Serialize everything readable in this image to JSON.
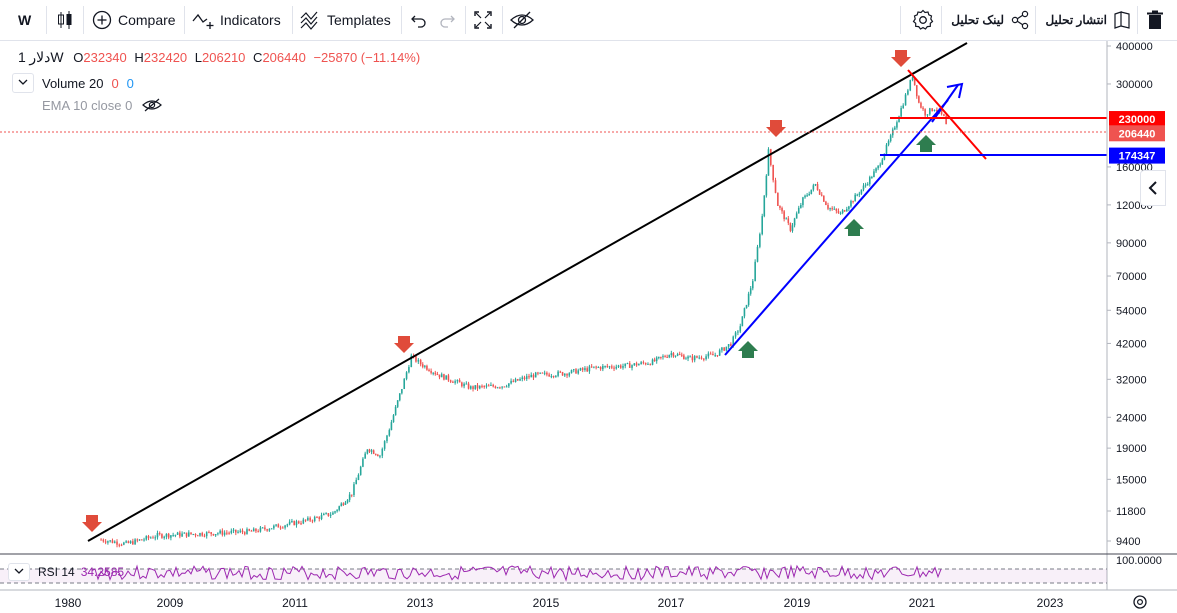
{
  "toolbar": {
    "symbol": "W",
    "compare_label": "Compare",
    "indicators_label": "Indicators",
    "templates_label": "Templates",
    "publish_label": "انتشار تحلیل",
    "share_link_label": "لینک تحلیل"
  },
  "legend": {
    "symbol": "دلار",
    "interval": "1W",
    "open_label": "O",
    "open": "232340",
    "high_label": "H",
    "high": "232420",
    "low_label": "L",
    "low": "206210",
    "close_label": "C",
    "close": "206440",
    "change": "−25870 (−11.14%)",
    "volume_label": "Volume 20",
    "volume_v1": "0",
    "volume_v2": "0",
    "ema_label": "EMA 10 close 0",
    "rsi_label": "RSI 14",
    "rsi_value": "34.2585"
  },
  "colors": {
    "up": "#26a69a",
    "down": "#ef5350",
    "trendline": "#000000",
    "support_line": "#0000ff",
    "resistance_line": "#ff0000",
    "rsi": "#9c27b0",
    "up_arrow": "#2e7d4f",
    "down_arrow": "#e04b3a"
  },
  "chart_data": {
    "type": "candlestick",
    "scale": "log",
    "y_ticks": [
      9400,
      11800,
      15000,
      19000,
      24000,
      32000,
      42000,
      54000,
      70000,
      90000,
      120000,
      160000,
      300000,
      400000
    ],
    "x_ticks": [
      "1980",
      "2009",
      "2011",
      "2013",
      "2015",
      "2017",
      "2019",
      "2021",
      "2023"
    ],
    "price_labels": [
      {
        "value": 230000,
        "text": "230000",
        "color": "#ff0000"
      },
      {
        "value": 206440,
        "text": "206440",
        "color": "#ef5350"
      },
      {
        "value": 174347,
        "text": "174347",
        "color": "#0000ff"
      }
    ],
    "series": [
      {
        "x": 2007.9,
        "y": 9500
      },
      {
        "x": 2008.3,
        "y": 9200
      },
      {
        "x": 2008.8,
        "y": 9800
      },
      {
        "x": 2009.3,
        "y": 9900
      },
      {
        "x": 2009.8,
        "y": 10000
      },
      {
        "x": 2010.3,
        "y": 10100
      },
      {
        "x": 2010.8,
        "y": 10600
      },
      {
        "x": 2011.2,
        "y": 11000
      },
      {
        "x": 2011.6,
        "y": 11600
      },
      {
        "x": 2011.9,
        "y": 13500
      },
      {
        "x": 2012.15,
        "y": 19000
      },
      {
        "x": 2012.35,
        "y": 18000
      },
      {
        "x": 2012.5,
        "y": 22000
      },
      {
        "x": 2012.7,
        "y": 30000
      },
      {
        "x": 2012.85,
        "y": 38000
      },
      {
        "x": 2013.0,
        "y": 36000
      },
      {
        "x": 2013.3,
        "y": 33000
      },
      {
        "x": 2013.8,
        "y": 30000
      },
      {
        "x": 2014.3,
        "y": 30500
      },
      {
        "x": 2014.8,
        "y": 33000
      },
      {
        "x": 2015.3,
        "y": 33500
      },
      {
        "x": 2015.8,
        "y": 35000
      },
      {
        "x": 2016.3,
        "y": 35500
      },
      {
        "x": 2016.7,
        "y": 36500
      },
      {
        "x": 2017.0,
        "y": 39000
      },
      {
        "x": 2017.3,
        "y": 37500
      },
      {
        "x": 2017.7,
        "y": 38500
      },
      {
        "x": 2017.95,
        "y": 42000
      },
      {
        "x": 2018.1,
        "y": 48000
      },
      {
        "x": 2018.3,
        "y": 68000
      },
      {
        "x": 2018.45,
        "y": 110000
      },
      {
        "x": 2018.55,
        "y": 180000
      },
      {
        "x": 2018.7,
        "y": 120000
      },
      {
        "x": 2018.9,
        "y": 100000
      },
      {
        "x": 2019.1,
        "y": 125000
      },
      {
        "x": 2019.3,
        "y": 140000
      },
      {
        "x": 2019.5,
        "y": 118000
      },
      {
        "x": 2019.7,
        "y": 112000
      },
      {
        "x": 2019.9,
        "y": 125000
      },
      {
        "x": 2020.1,
        "y": 140000
      },
      {
        "x": 2020.3,
        "y": 160000
      },
      {
        "x": 2020.5,
        "y": 200000
      },
      {
        "x": 2020.7,
        "y": 260000
      },
      {
        "x": 2020.85,
        "y": 320000
      },
      {
        "x": 2020.95,
        "y": 260000
      },
      {
        "x": 2021.05,
        "y": 240000
      },
      {
        "x": 2021.2,
        "y": 250000
      },
      {
        "x": 2021.35,
        "y": 232340
      },
      {
        "x": 2021.42,
        "y": 206440
      }
    ],
    "rsi": {
      "value": 34.2585
    }
  }
}
